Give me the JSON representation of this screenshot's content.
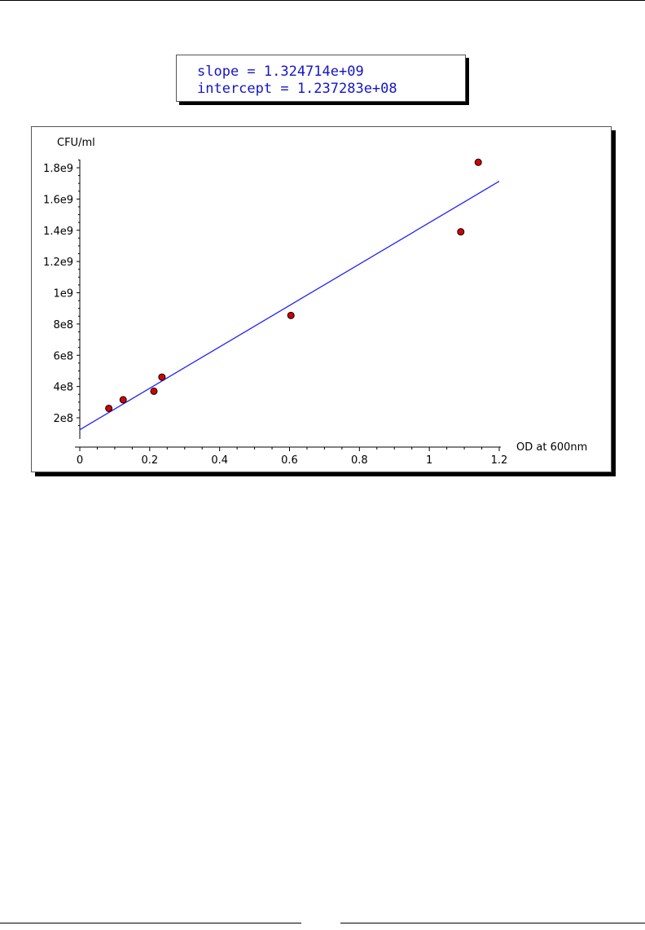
{
  "output": {
    "slope_line": "slope = 1.324714e+09",
    "intercept_line": "intercept = 1.237283e+08"
  },
  "chart_data": {
    "type": "scatter",
    "title": "",
    "xlabel": "OD at 600nm",
    "ylabel": "CFU/ml",
    "xlim": [
      -0.02,
      1.2
    ],
    "ylim": [
      80000000,
      1920000000
    ],
    "x_ticks": [
      0,
      0.2,
      0.4,
      0.6,
      0.8,
      1,
      1.2
    ],
    "x_tick_labels": [
      "0",
      "0.2",
      "0.4",
      "0.6",
      "0.8",
      "1",
      "1.2"
    ],
    "y_ticks": [
      200000000,
      400000000,
      600000000,
      800000000,
      1000000000,
      1200000000,
      1400000000,
      1600000000,
      1800000000
    ],
    "y_tick_labels": [
      "2e8",
      "4e8",
      "6e8",
      "8e8",
      "1e9",
      "1.2e9",
      "1.4e9",
      "1.6e9",
      "1.8e9"
    ],
    "grid": false,
    "series": [
      {
        "type": "scatter",
        "color": "#d40000",
        "points": [
          {
            "x": 0.083,
            "y": 260000000
          },
          {
            "x": 0.124,
            "y": 315000000
          },
          {
            "x": 0.212,
            "y": 370000000
          },
          {
            "x": 0.235,
            "y": 460000000
          },
          {
            "x": 0.604,
            "y": 855000000
          },
          {
            "x": 1.09,
            "y": 1390000000
          },
          {
            "x": 1.14,
            "y": 1835000000
          }
        ]
      },
      {
        "type": "line",
        "color": "#2020ff",
        "slope": 1324714000,
        "intercept": 123728300,
        "x_range": [
          0,
          1.2
        ]
      }
    ]
  }
}
